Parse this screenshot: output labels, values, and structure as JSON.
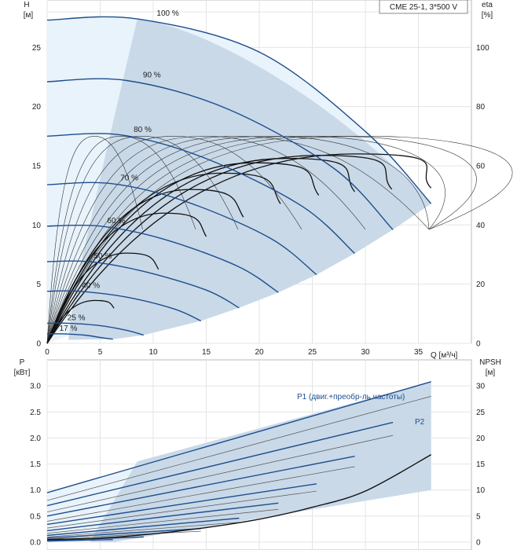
{
  "chart_data": [
    {
      "type": "line",
      "title": "CME 25-1, 3*500 V",
      "left_axis_label": "H",
      "left_axis_unit": "[м]",
      "right_axis_label": "eta",
      "right_axis_unit": "[%]",
      "xlabel": "Q [м³/ч]",
      "xlim": [
        0,
        40
      ],
      "ylim": [
        0,
        29
      ],
      "y2lim": [
        0,
        116
      ],
      "x_ticks": [
        "0",
        "5",
        "10",
        "15",
        "20",
        "25",
        "30",
        "35"
      ],
      "y_ticks": [
        "0",
        "5",
        "10",
        "15",
        "20",
        "25"
      ],
      "y2_ticks": [
        "0",
        "20",
        "40",
        "60",
        "80",
        "100"
      ],
      "qh_series": [
        {
          "name": "100 %",
          "x": [
            0,
            8.5,
            20,
            30,
            36.2
          ],
          "y": [
            27.3,
            27.4,
            24.6,
            17.9,
            11.8
          ]
        },
        {
          "name": "90 %",
          "x": [
            0,
            7.5,
            17,
            27,
            32.6
          ],
          "y": [
            22.1,
            22.2,
            19.8,
            14.8,
            9.6
          ]
        },
        {
          "name": "80 %",
          "x": [
            0,
            7,
            15,
            24,
            29
          ],
          "y": [
            17.5,
            17.6,
            15.6,
            11.6,
            7.6
          ]
        },
        {
          "name": "70 %",
          "x": [
            0,
            6,
            13,
            21,
            25.4
          ],
          "y": [
            13.4,
            13.5,
            12.0,
            8.9,
            5.8
          ]
        },
        {
          "name": "60 %",
          "x": [
            0,
            5,
            11,
            18,
            21.8
          ],
          "y": [
            9.9,
            9.9,
            8.8,
            6.5,
            4.3
          ]
        },
        {
          "name": "50 %",
          "x": [
            0,
            4,
            9,
            15,
            18.1
          ],
          "y": [
            6.9,
            6.9,
            6.1,
            4.5,
            3.0
          ]
        },
        {
          "name": "40 %",
          "x": [
            0,
            3,
            7.5,
            12,
            14.5
          ],
          "y": [
            4.4,
            4.4,
            3.9,
            2.9,
            1.9
          ]
        },
        {
          "name": "25 %",
          "x": [
            0,
            2,
            5,
            7.5,
            9.1
          ],
          "y": [
            1.7,
            1.7,
            1.5,
            1.1,
            0.7
          ]
        },
        {
          "name": "17 %",
          "x": [
            0,
            1.5,
            3.5,
            5,
            6.2
          ],
          "y": [
            0.8,
            0.8,
            0.7,
            0.5,
            0.35
          ]
        }
      ],
      "eta_peaks": [
        {
          "q": 4.5,
          "eta": 70
        },
        {
          "q": 7.0,
          "eta": 70
        },
        {
          "q": 9.0,
          "eta": 70
        },
        {
          "q": 12.0,
          "eta": 70
        },
        {
          "q": 15.0,
          "eta": 70
        },
        {
          "q": 18.0,
          "eta": 70
        },
        {
          "q": 21.0,
          "eta": 70
        },
        {
          "q": 24.0,
          "eta": 70
        },
        {
          "q": 27.0,
          "eta": 70
        },
        {
          "q": 30.0,
          "eta": 70
        }
      ],
      "eta_total_peaks": [
        {
          "q": 4.5,
          "eta": 14.5,
          "end": 6.3
        },
        {
          "q": 7.5,
          "eta": 30.5,
          "end": 10.5
        },
        {
          "q": 11,
          "eta": 44,
          "end": 15
        },
        {
          "q": 13.5,
          "eta": 52,
          "end": 18.5
        },
        {
          "q": 16.5,
          "eta": 57.5,
          "end": 22
        },
        {
          "q": 19.5,
          "eta": 61,
          "end": 25.6
        },
        {
          "q": 22.5,
          "eta": 62.5,
          "end": 29
        },
        {
          "q": 25.5,
          "eta": 63.5,
          "end": 32.5
        },
        {
          "q": 29,
          "eta": 64,
          "end": 36.2
        }
      ]
    },
    {
      "type": "line",
      "left_axis_label": "P",
      "left_axis_unit": "[кВт]",
      "right_axis_label": "NPSH",
      "right_axis_unit": "[м]",
      "xlim": [
        0,
        40
      ],
      "ylim": [
        0,
        3.5
      ],
      "y2lim": [
        0,
        35
      ],
      "y_ticks": [
        "0.0",
        "0.5",
        "1.0",
        "1.5",
        "2.0",
        "2.5",
        "3.0"
      ],
      "y2_ticks": [
        "0",
        "5",
        "10",
        "15",
        "20",
        "25",
        "30"
      ],
      "p1_label": "P1 (двиг.+преобр-ль частоты)",
      "p2_label": "P2",
      "p1_series": [
        {
          "name": "100 %",
          "x": [
            0,
            36.2
          ],
          "y": [
            0.95,
            3.08
          ]
        },
        {
          "name": "90 %",
          "x": [
            0,
            32.6
          ],
          "y": [
            0.7,
            2.3
          ]
        },
        {
          "name": "80 %",
          "x": [
            0,
            29
          ],
          "y": [
            0.5,
            1.65
          ]
        },
        {
          "name": "70 %",
          "x": [
            0,
            25.4
          ],
          "y": [
            0.34,
            1.12
          ]
        },
        {
          "name": "60 %",
          "x": [
            0,
            21.8
          ],
          "y": [
            0.22,
            0.75
          ]
        },
        {
          "name": "50 %",
          "x": [
            0,
            18.1
          ],
          "y": [
            0.13,
            0.46
          ]
        },
        {
          "name": "40 %",
          "x": [
            0,
            14.5
          ],
          "y": [
            0.08,
            0.26
          ]
        },
        {
          "name": "25 %",
          "x": [
            0,
            9.1
          ],
          "y": [
            0.03,
            0.1
          ]
        },
        {
          "name": "17 %",
          "x": [
            0,
            6.2
          ],
          "y": [
            0.02,
            0.05
          ]
        }
      ],
      "p2_series": [
        {
          "name": "100 %",
          "x": [
            0,
            36.2
          ],
          "y": [
            0.8,
            2.8
          ]
        },
        {
          "name": "90 %",
          "x": [
            0,
            32.6
          ],
          "y": [
            0.58,
            2.05
          ]
        },
        {
          "name": "80 %",
          "x": [
            0,
            29
          ],
          "y": [
            0.4,
            1.45
          ]
        },
        {
          "name": "70 %",
          "x": [
            0,
            25.4
          ],
          "y": [
            0.27,
            0.98
          ]
        },
        {
          "name": "60 %",
          "x": [
            0,
            21.8
          ],
          "y": [
            0.17,
            0.63
          ]
        },
        {
          "name": "50 %",
          "x": [
            0,
            18.1
          ],
          "y": [
            0.1,
            0.38
          ]
        },
        {
          "name": "40 %",
          "x": [
            0,
            14.5
          ],
          "y": [
            0.06,
            0.21
          ]
        }
      ],
      "npsh": {
        "x": [
          0,
          5,
          10,
          15,
          20,
          25,
          30,
          36.2
        ],
        "y": [
          0.5,
          0.8,
          1.6,
          2.8,
          4.4,
          6.7,
          9.8,
          16.8
        ]
      }
    }
  ]
}
